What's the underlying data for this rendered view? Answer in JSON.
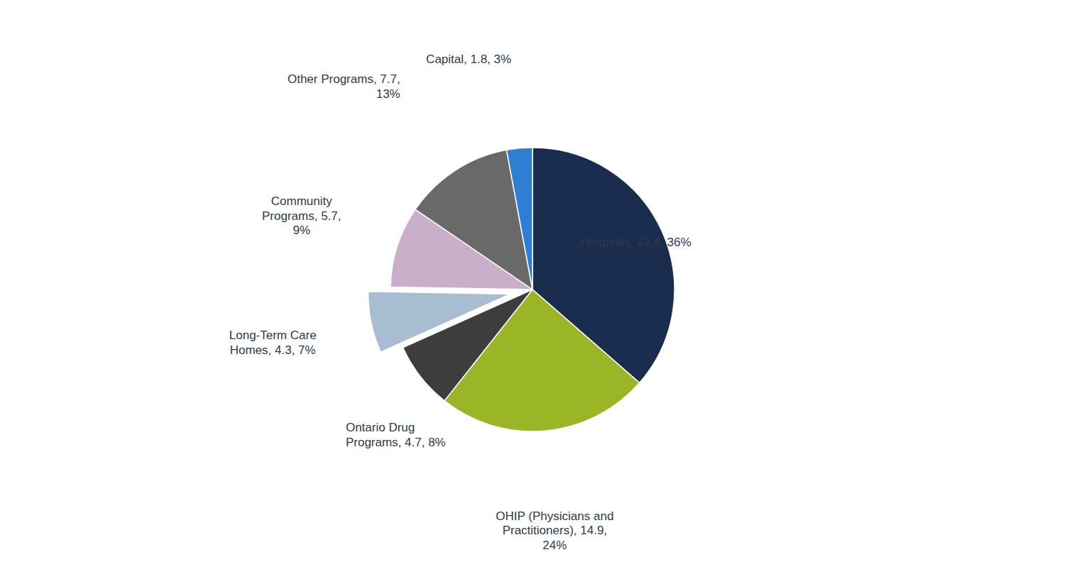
{
  "chart_data": {
    "type": "pie",
    "categories": [
      "Hospitals, 22.4, 36%",
      "OHIP (Physicians and\nPractitioners), 14.9,\n24%",
      "Ontario Drug\nPrograms, 4.7, 8%",
      "Long-Term Care\nHomes, 4.3, 7%",
      "Community\nPrograms, 5.7,\n9%",
      "Other Programs, 7.7,\n13%",
      "Capital, 1.8, 3%"
    ],
    "values": [
      22.4,
      14.9,
      4.7,
      4.3,
      5.7,
      7.7,
      1.8
    ],
    "colors": [
      "#1b2d4f",
      "#9ab525",
      "#3d3d3d",
      "#a8bdd1",
      "#c9afc9",
      "#696969",
      "#2e7fd4"
    ]
  }
}
